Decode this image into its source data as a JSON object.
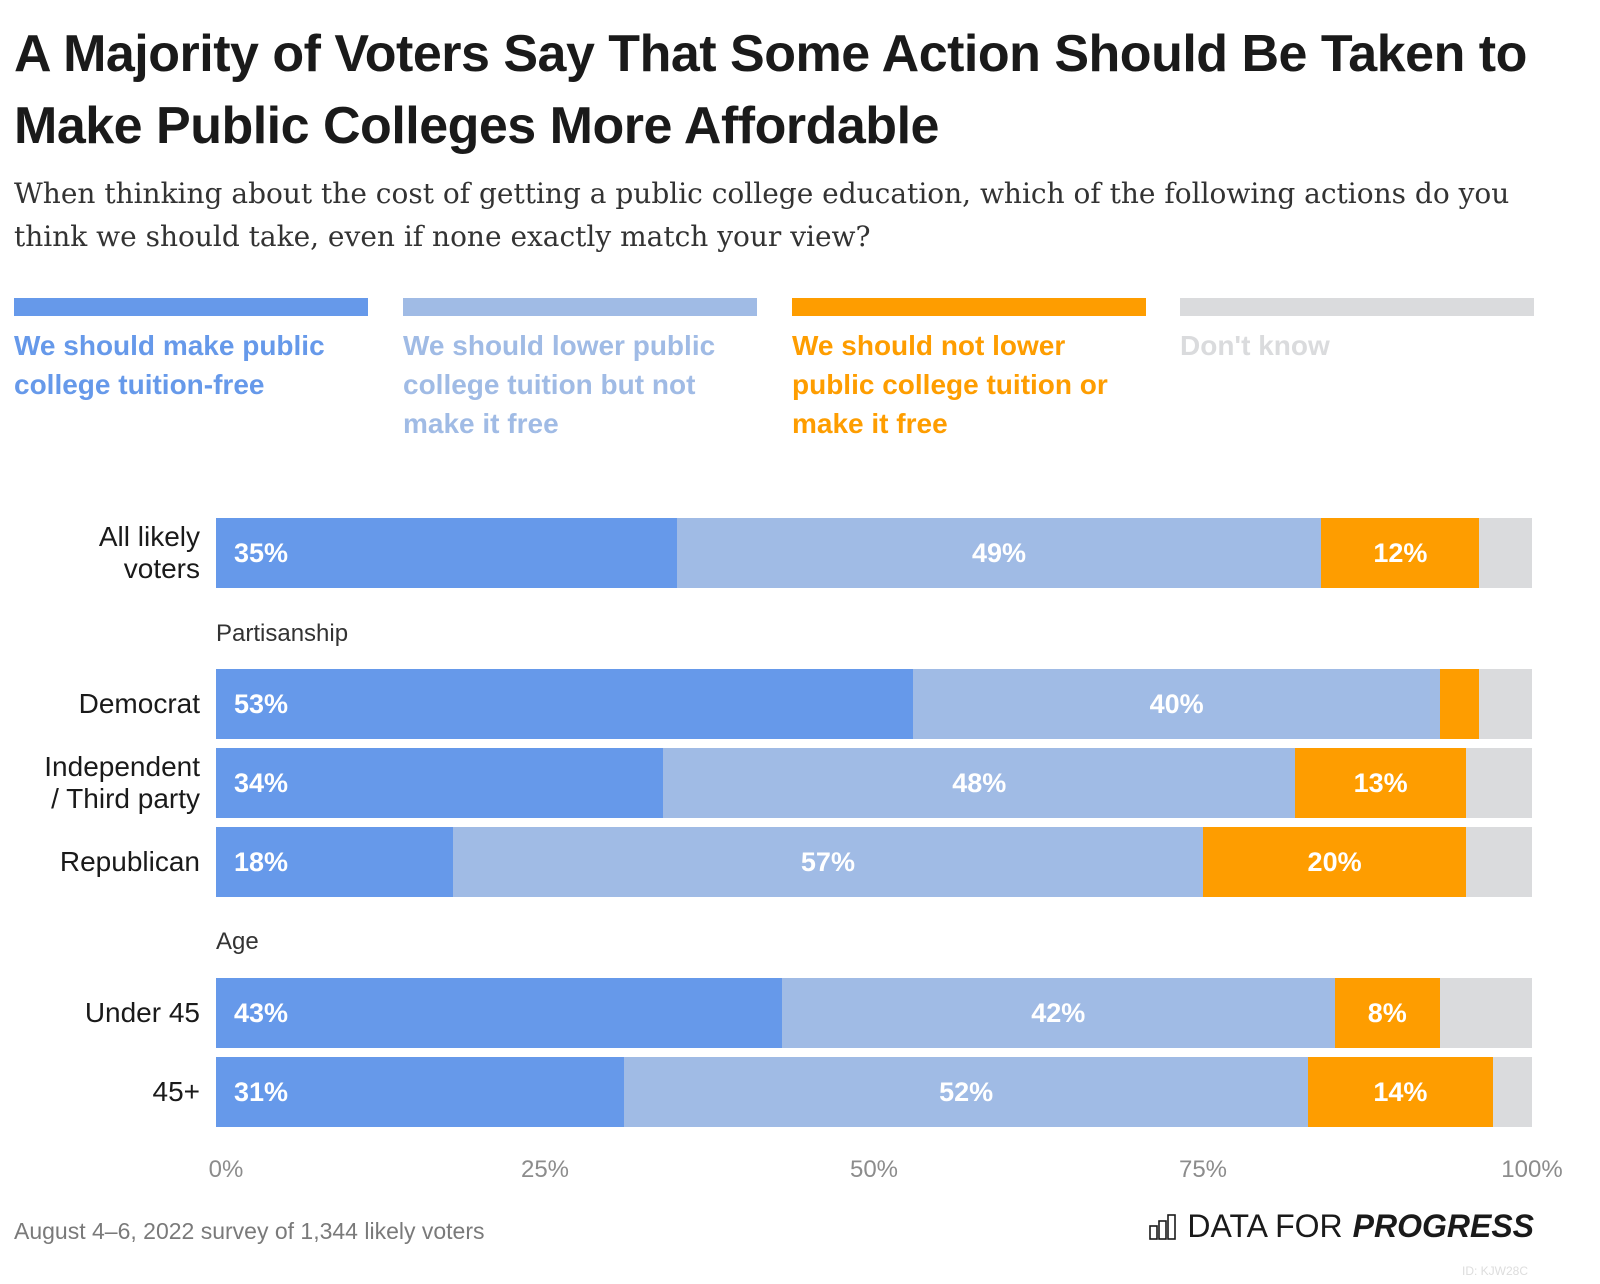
{
  "title": "A Majority of Voters Say That Some Action Should Be Taken to Make Public Colleges More Affordable",
  "subtitle": "When thinking about the cost of getting a public college education, which of the following actions do you think we should take, even if none exactly match your view?",
  "footer": {
    "note": "August 4–6, 2022 survey of 1,344 likely voters",
    "brand_light": "DATA FOR",
    "brand_bold": "PROGRESS",
    "brand_icon": "bar-chart-icon",
    "id": "ID: KJW28C"
  },
  "colors": {
    "free": "#6699ea",
    "lower": "#a0bbe5",
    "not_lower": "#fe9d00",
    "dont_know": "#dadbdd"
  },
  "chart_data": {
    "type": "bar",
    "orientation": "horizontal-stacked-100",
    "title": "A Majority of Voters Say That Some Action Should Be Taken to Make Public Colleges More Affordable",
    "xlabel": "",
    "ylabel": "",
    "xlim": [
      0,
      100
    ],
    "x_ticks": [
      "0%",
      "25%",
      "50%",
      "75%",
      "100%"
    ],
    "legend_position": "top",
    "series": [
      {
        "name": "We should make public college tuition-free",
        "key": "free"
      },
      {
        "name": "We should lower public college tuition but not make it free",
        "key": "lower"
      },
      {
        "name": "We should not lower public college tuition or make it free",
        "key": "not_lower"
      },
      {
        "name": "Don't know",
        "key": "dont_know"
      }
    ],
    "groups": [
      {
        "label": "",
        "rows": [
          {
            "label": "All likely voters",
            "values": [
              35,
              49,
              12,
              4
            ],
            "labels": [
              "35%",
              "49%",
              "12%",
              ""
            ]
          }
        ]
      },
      {
        "label": "Partisanship",
        "rows": [
          {
            "label": "Democrat",
            "values": [
              53,
              40,
              3,
              4
            ],
            "labels": [
              "53%",
              "40%",
              "",
              ""
            ]
          },
          {
            "label": "Independent / Third party",
            "values": [
              34,
              48,
              13,
              5
            ],
            "labels": [
              "34%",
              "48%",
              "13%",
              ""
            ]
          },
          {
            "label": "Republican",
            "values": [
              18,
              57,
              20,
              5
            ],
            "labels": [
              "18%",
              "57%",
              "20%",
              ""
            ]
          }
        ]
      },
      {
        "label": "Age",
        "rows": [
          {
            "label": "Under 45",
            "values": [
              43,
              42,
              8,
              7
            ],
            "labels": [
              "43%",
              "42%",
              "8%",
              ""
            ]
          },
          {
            "label": "45+",
            "values": [
              31,
              52,
              14,
              3
            ],
            "labels": [
              "31%",
              "52%",
              "14%",
              ""
            ]
          }
        ]
      }
    ]
  }
}
